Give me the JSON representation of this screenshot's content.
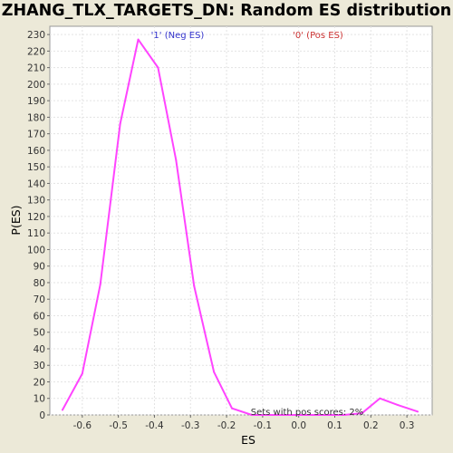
{
  "chart_data": {
    "type": "line",
    "title": "ZHANG_TLX_TARGETS_DN: Random ES distribution",
    "xlabel": "ES",
    "ylabel": "P(ES)",
    "xlim": [
      -0.69,
      0.37
    ],
    "ylim": [
      0,
      235
    ],
    "x_ticks": [
      -0.6,
      -0.5,
      -0.4,
      -0.3,
      -0.2,
      -0.1,
      0.0,
      0.1,
      0.2,
      0.3
    ],
    "x_tick_labels": [
      "-0.6",
      "-0.5",
      "-0.4",
      "-0.3",
      "-0.2",
      "-0.1",
      "0.0",
      "0.1",
      "0.2",
      "0.3"
    ],
    "y_ticks": [
      0,
      10,
      20,
      30,
      40,
      50,
      60,
      70,
      80,
      90,
      100,
      110,
      120,
      130,
      140,
      150,
      160,
      170,
      180,
      190,
      200,
      210,
      220,
      230
    ],
    "grid": true,
    "series": [
      {
        "color": "#ff44ff",
        "x": [
          -0.655,
          -0.6,
          -0.55,
          -0.495,
          -0.445,
          -0.39,
          -0.34,
          -0.29,
          -0.235,
          -0.185,
          -0.13,
          -0.08,
          -0.025,
          0.025,
          0.08,
          0.125,
          0.175,
          0.225,
          0.275,
          0.33
        ],
        "y": [
          3,
          25,
          79,
          176,
          227,
          210,
          154,
          78,
          26,
          4,
          0,
          0,
          0,
          0,
          0,
          0,
          1,
          10,
          6,
          2
        ]
      }
    ],
    "annotations": [
      {
        "text": "'1' (Neg ES)",
        "color": "#3333cc"
      },
      {
        "text": "'0' (Pos ES)",
        "color": "#cc3333"
      },
      {
        "text": "Sets with pos scores: 2%",
        "color": "#333333"
      }
    ]
  }
}
